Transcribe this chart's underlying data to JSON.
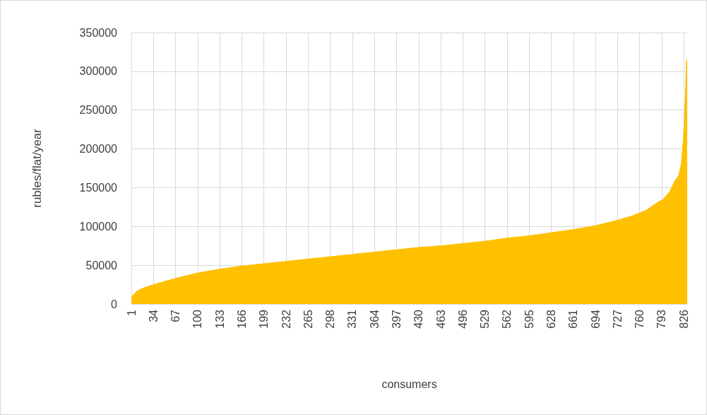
{
  "chart_data": {
    "type": "area",
    "xlabel": "consumers",
    "ylabel": "rubles/flat/year",
    "x": [
      1,
      5,
      10,
      20,
      34,
      50,
      67,
      85,
      100,
      120,
      133,
      166,
      199,
      232,
      265,
      298,
      331,
      364,
      397,
      430,
      463,
      496,
      529,
      562,
      595,
      628,
      661,
      694,
      727,
      750,
      770,
      785,
      795,
      805,
      812,
      818,
      822,
      825,
      827,
      829,
      830,
      831
    ],
    "series": [
      {
        "color": "#ffc000",
        "values": [
          8000,
          13000,
          17000,
          21000,
          25000,
          29000,
          33000,
          37000,
          40000,
          43000,
          45000,
          49000,
          52000,
          55000,
          58000,
          61000,
          64000,
          67000,
          70000,
          73000,
          75000,
          78000,
          81000,
          85000,
          88000,
          92000,
          96000,
          101000,
          108000,
          114000,
          121000,
          130000,
          135000,
          145000,
          158000,
          165000,
          180000,
          210000,
          240000,
          290000,
          315000,
          315000
        ]
      }
    ],
    "xlim": [
      1,
      831
    ],
    "xticks": [
      1,
      34,
      67,
      100,
      133,
      166,
      199,
      232,
      265,
      298,
      331,
      364,
      397,
      430,
      463,
      496,
      529,
      562,
      595,
      628,
      661,
      694,
      727,
      760,
      793,
      826
    ],
    "ylim": [
      0,
      350000
    ],
    "yticks": [
      0,
      50000,
      100000,
      150000,
      200000,
      250000,
      300000,
      350000
    ],
    "grid": true,
    "marker": "none"
  }
}
